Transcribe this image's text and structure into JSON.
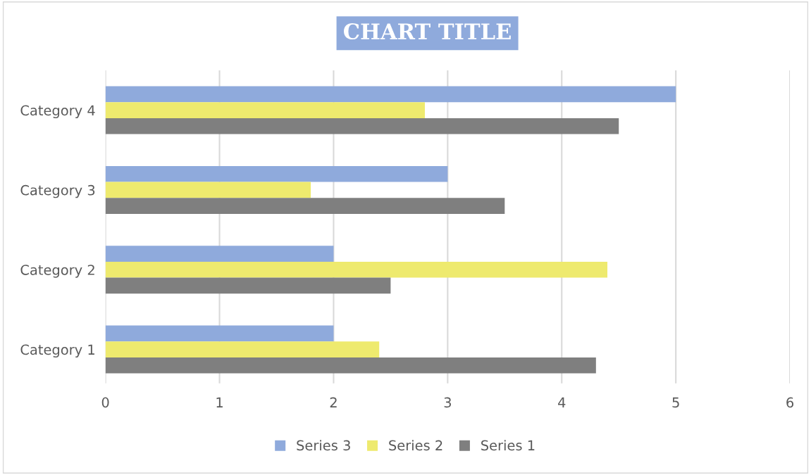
{
  "chart_data": {
    "type": "bar",
    "orientation": "horizontal",
    "title": "CHART TITLE",
    "categories": [
      "Category 4",
      "Category 3",
      "Category 2",
      "Category 1"
    ],
    "series": [
      {
        "name": "Series 3",
        "color": "#8faadc",
        "values": [
          5,
          3,
          2,
          2
        ]
      },
      {
        "name": "Series 2",
        "color": "#eeea6e",
        "values": [
          2.8,
          1.8,
          4.4,
          2.4
        ]
      },
      {
        "name": "Series 1",
        "color": "#7f7f7f",
        "values": [
          4.5,
          3.5,
          2.5,
          4.3
        ]
      }
    ],
    "xlim": [
      0,
      6
    ],
    "xticks": [
      0,
      1,
      2,
      3,
      4,
      5,
      6
    ],
    "grid": "x",
    "legend": "bottom"
  }
}
